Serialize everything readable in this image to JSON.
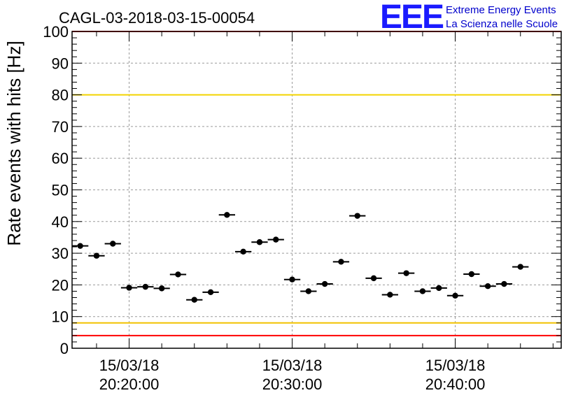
{
  "chart_data": {
    "type": "scatter",
    "title": "CAGL-03-2018-03-15-00054",
    "ylabel": "Rate events with hits [Hz]",
    "xlabel": "",
    "ylim": [
      0,
      100
    ],
    "yticks": [
      0,
      10,
      20,
      30,
      40,
      50,
      60,
      70,
      80,
      90,
      100
    ],
    "xlim": [
      "2018-03-15 20:16:30",
      "2018-03-15 20:46:30"
    ],
    "xticks": [
      {
        "time": "2018-03-15 20:20:00",
        "date_label": "15/03/18",
        "time_label": "20:20:00"
      },
      {
        "time": "2018-03-15 20:30:00",
        "date_label": "15/03/18",
        "time_label": "20:30:00"
      },
      {
        "time": "2018-03-15 20:40:00",
        "date_label": "15/03/18",
        "time_label": "20:40:00"
      }
    ],
    "grid": true,
    "bin_width_minutes": 1,
    "points": [
      {
        "t": "20:17:00",
        "y": 32.3
      },
      {
        "t": "20:18:00",
        "y": 29.2
      },
      {
        "t": "20:19:00",
        "y": 33.0
      },
      {
        "t": "20:20:00",
        "y": 19.1
      },
      {
        "t": "20:21:00",
        "y": 19.4
      },
      {
        "t": "20:22:00",
        "y": 18.9
      },
      {
        "t": "20:23:00",
        "y": 23.3
      },
      {
        "t": "20:24:00",
        "y": 15.3
      },
      {
        "t": "20:25:00",
        "y": 17.7
      },
      {
        "t": "20:26:00",
        "y": 42.1
      },
      {
        "t": "20:27:00",
        "y": 30.5
      },
      {
        "t": "20:28:00",
        "y": 33.5
      },
      {
        "t": "20:29:00",
        "y": 34.3
      },
      {
        "t": "20:30:00",
        "y": 21.7
      },
      {
        "t": "20:31:00",
        "y": 18.0
      },
      {
        "t": "20:32:00",
        "y": 20.3
      },
      {
        "t": "20:33:00",
        "y": 27.3
      },
      {
        "t": "20:34:00",
        "y": 41.8
      },
      {
        "t": "20:35:00",
        "y": 22.1
      },
      {
        "t": "20:36:00",
        "y": 16.9
      },
      {
        "t": "20:37:00",
        "y": 23.7
      },
      {
        "t": "20:38:00",
        "y": 18.0
      },
      {
        "t": "20:39:00",
        "y": 19.0
      },
      {
        "t": "20:40:00",
        "y": 16.6
      },
      {
        "t": "20:41:00",
        "y": 23.4
      },
      {
        "t": "20:42:00",
        "y": 19.6
      },
      {
        "t": "20:43:00",
        "y": 20.3
      },
      {
        "t": "20:44:00",
        "y": 25.7
      }
    ],
    "reference_lines": [
      {
        "y": 100,
        "color": "#ff0000"
      },
      {
        "y": 80,
        "color": "#f2d400"
      },
      {
        "y": 8,
        "color": "#f2c200"
      },
      {
        "y": 4,
        "color": "#ff0000"
      }
    ]
  },
  "logo": {
    "letters": "EEE",
    "line1": "Extreme Energy Events",
    "line2": "La Scienza nelle Scuole",
    "color": "#1a1aff"
  }
}
